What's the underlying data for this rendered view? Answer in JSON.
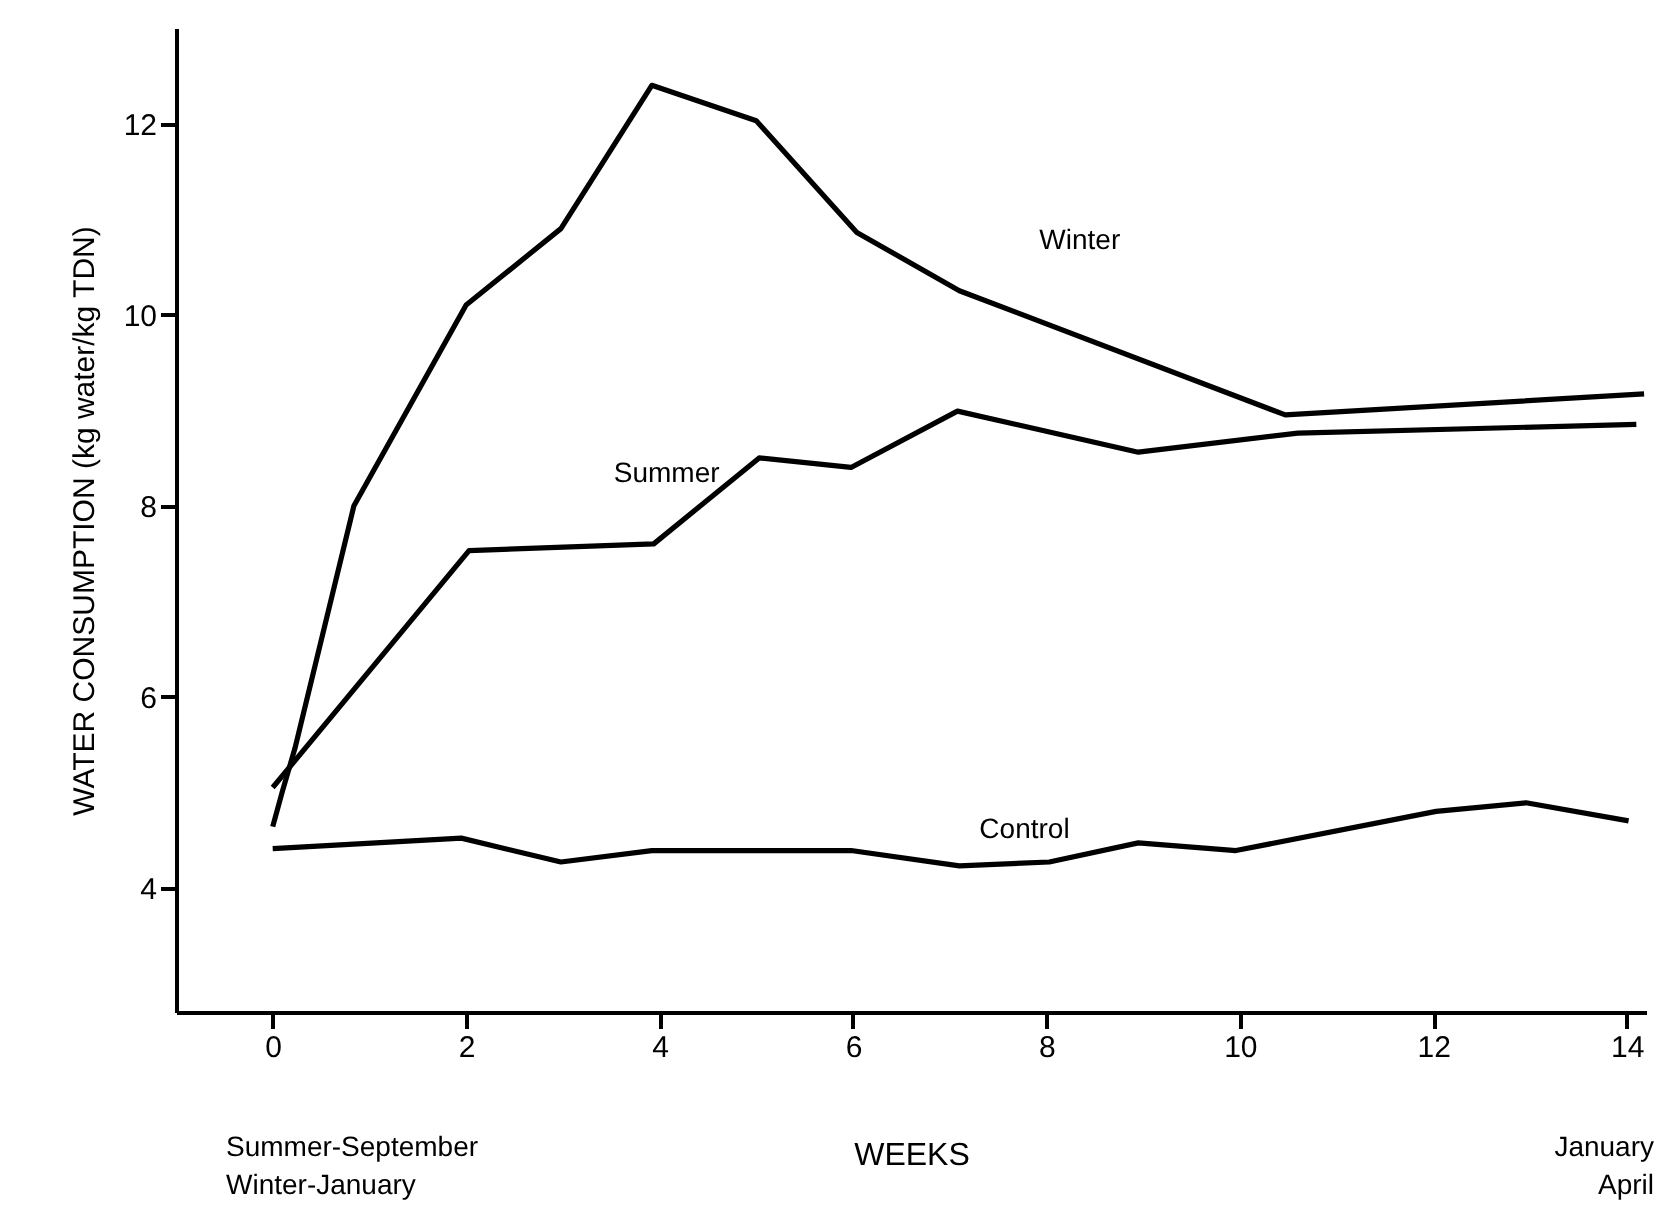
{
  "chart_data": {
    "type": "line",
    "xlabel": "WEEKS",
    "ylabel": "WATER CONSUMPTION (kg water/kg TDN)",
    "xlim": [
      -1,
      14.2
    ],
    "ylim": [
      2.7,
      13
    ],
    "xticks": [
      0,
      2,
      4,
      6,
      8,
      10,
      12,
      14
    ],
    "yticks": [
      4,
      6,
      8,
      10,
      12
    ],
    "grid": false,
    "marker": "none",
    "line_style": "solid",
    "series": [
      {
        "name": "Winter",
        "color": "#000000",
        "x": [
          0,
          0.1,
          0.23,
          0.84,
          2.0,
          2.98,
          3.92,
          5.0,
          6.04,
          7.1,
          10.47,
          14.18
        ],
        "values": [
          4.64,
          5.01,
          5.46,
          8.0,
          10.1,
          10.9,
          12.4,
          12.03,
          10.86,
          10.25,
          8.95,
          9.17
        ]
      },
      {
        "name": "Summer",
        "color": "#000000",
        "x": [
          0,
          2.03,
          3.94,
          5.03,
          5.98,
          7.08,
          8.95,
          10.6,
          14.1
        ],
        "values": [
          5.05,
          7.53,
          7.6,
          8.5,
          8.4,
          8.99,
          8.56,
          8.76,
          8.85
        ]
      },
      {
        "name": "Control",
        "color": "#000000",
        "x": [
          0,
          1.95,
          2.98,
          3.92,
          5.98,
          7.1,
          8.03,
          8.95,
          9.96,
          12.03,
          12.96,
          14.02
        ],
        "values": [
          4.41,
          4.52,
          4.27,
          4.39,
          4.39,
          4.23,
          4.27,
          4.47,
          4.39,
          4.8,
          4.89,
          4.7
        ]
      }
    ],
    "annotations": [
      "Summer-September",
      "Winter-January",
      "January",
      "April"
    ]
  }
}
